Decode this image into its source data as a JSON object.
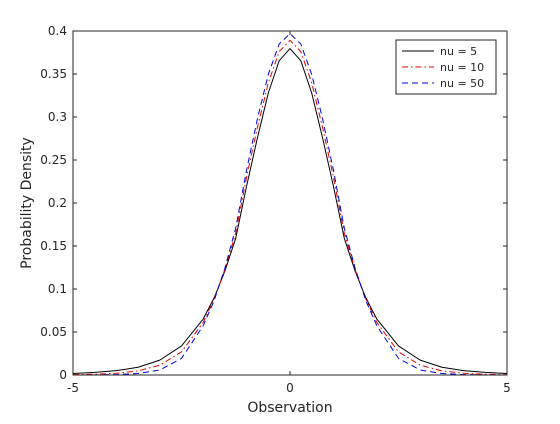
{
  "chart_data": {
    "type": "line",
    "title": "",
    "xlabel": "Observation",
    "ylabel": "Probability Density",
    "xlim": [
      -5,
      5
    ],
    "ylim": [
      0,
      0.4
    ],
    "xticks": [
      -5,
      0,
      5
    ],
    "yticks": [
      0,
      0.05,
      0.1,
      0.15,
      0.2,
      0.25,
      0.3,
      0.35,
      0.4
    ],
    "xtick_labels": [
      "-5",
      "0",
      "5"
    ],
    "ytick_labels": [
      "0",
      "0.05",
      "0.1",
      "0.15",
      "0.2",
      "0.25",
      "0.3",
      "0.35",
      "0.4"
    ],
    "grid": false,
    "legend_position": "top-right",
    "x": [
      -5,
      -4.5,
      -4,
      -3.5,
      -3,
      -2.5,
      -2,
      -1.75,
      -1.5,
      -1.25,
      -1,
      -0.75,
      -0.5,
      -0.25,
      0,
      0.25,
      0.5,
      0.75,
      1,
      1.25,
      1.5,
      1.75,
      2,
      2.5,
      3,
      3.5,
      4,
      4.5,
      5
    ],
    "series": [
      {
        "name": "nu = 5",
        "color": "#000000",
        "dash": "solid",
        "values": [
          0.0018,
          0.003,
          0.0051,
          0.009,
          0.0173,
          0.0338,
          0.0651,
          0.0895,
          0.1209,
          0.1591,
          0.2197,
          0.2758,
          0.3279,
          0.3653,
          0.3796,
          0.3653,
          0.3279,
          0.2758,
          0.2197,
          0.1591,
          0.1209,
          0.0895,
          0.0651,
          0.0338,
          0.0173,
          0.009,
          0.0051,
          0.003,
          0.0018
        ]
      },
      {
        "name": "nu = 10",
        "color": "#dd0000",
        "dash": "dashdot",
        "values": [
          0.0004,
          0.0009,
          0.002,
          0.0048,
          0.0114,
          0.0269,
          0.0611,
          0.0879,
          0.1227,
          0.1651,
          0.2304,
          0.2879,
          0.3397,
          0.376,
          0.3891,
          0.376,
          0.3397,
          0.2879,
          0.2304,
          0.1651,
          0.1227,
          0.0879,
          0.0611,
          0.0269,
          0.0114,
          0.0048,
          0.002,
          0.0009,
          0.0004
        ]
      },
      {
        "name": "nu = 50",
        "color": "#0000dd",
        "dash": "dashed",
        "values": [
          0.0,
          0.0001,
          0.0005,
          0.0017,
          0.0058,
          0.0193,
          0.0573,
          0.0862,
          0.1243,
          0.171,
          0.2384,
          0.298,
          0.3496,
          0.3848,
          0.397,
          0.3848,
          0.3496,
          0.298,
          0.2384,
          0.171,
          0.1243,
          0.0862,
          0.0573,
          0.0193,
          0.0058,
          0.0017,
          0.0005,
          0.0001,
          0.0
        ]
      }
    ]
  }
}
